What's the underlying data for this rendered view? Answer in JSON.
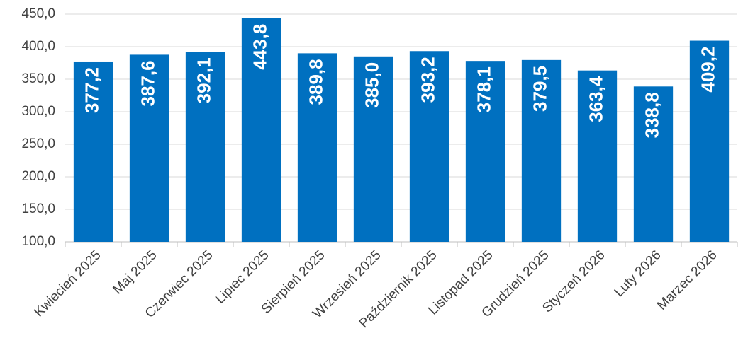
{
  "chart_data": {
    "type": "bar",
    "categories": [
      "Kwiecień 2025",
      "Maj 2025",
      "Czerwiec 2025",
      "Lipiec 2025",
      "Sierpień 2025",
      "Wrzesień 2025",
      "Październik 2025",
      "Listopad 2025",
      "Grudzień 2025",
      "Styczeń 2026",
      "Luty 2026",
      "Marzec 2026"
    ],
    "values": [
      377.2,
      387.6,
      392.1,
      443.8,
      389.8,
      385.0,
      393.2,
      378.1,
      379.5,
      363.4,
      338.8,
      409.2
    ],
    "value_labels": [
      "377,2",
      "387,6",
      "392,1",
      "443,8",
      "389,8",
      "385,0",
      "393,2",
      "378,1",
      "379,5",
      "363,4",
      "338,8",
      "409,2"
    ],
    "color": "#0070c0",
    "ylim": [
      100,
      450
    ],
    "yticks": [
      {
        "value": 100,
        "label": "100,0"
      },
      {
        "value": 150,
        "label": "150,0"
      },
      {
        "value": 200,
        "label": "200,0"
      },
      {
        "value": 250,
        "label": "250,0"
      },
      {
        "value": 300,
        "label": "300,0"
      },
      {
        "value": 350,
        "label": "350,0"
      },
      {
        "value": 400,
        "label": "400,0"
      },
      {
        "value": 450,
        "label": "450,0"
      }
    ],
    "grid": true
  }
}
